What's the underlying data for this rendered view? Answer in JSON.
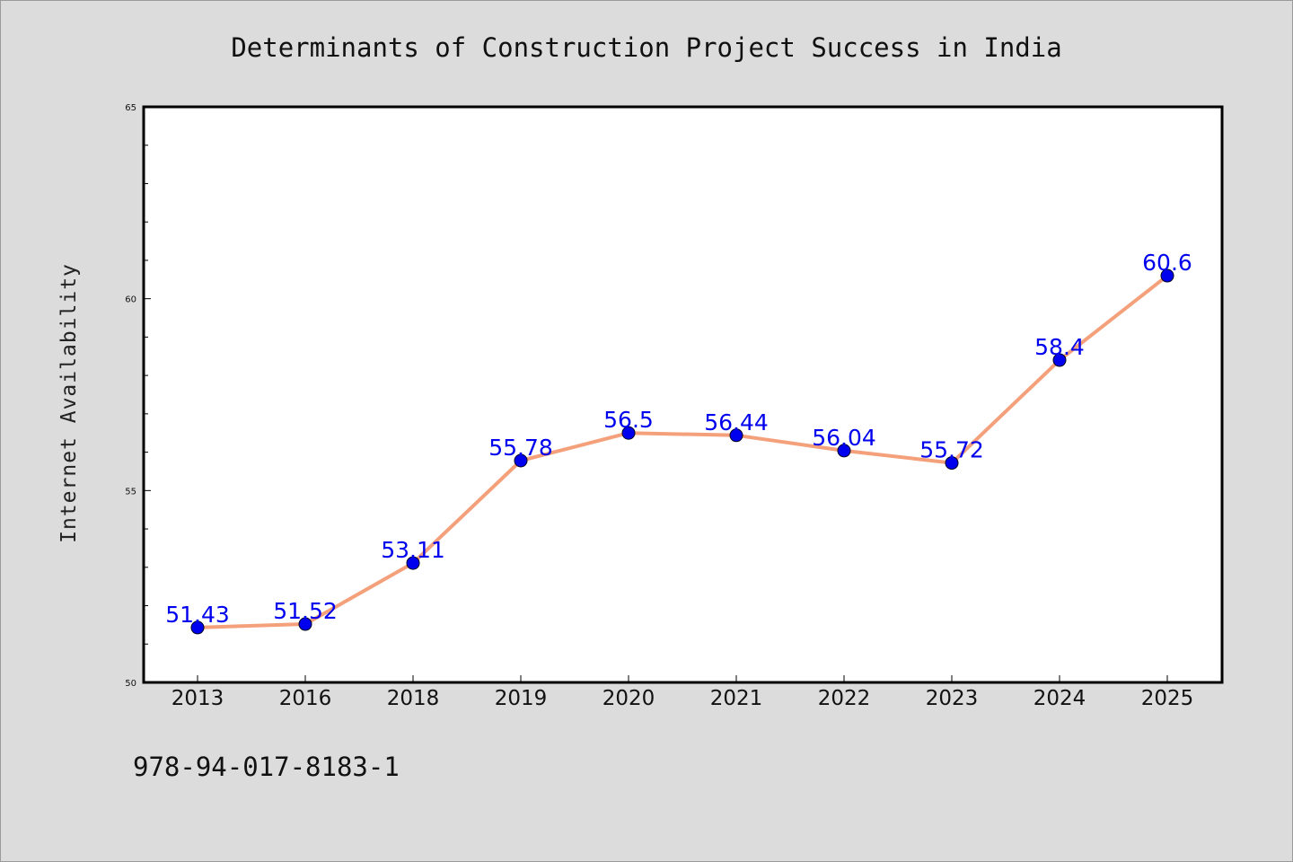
{
  "chart_data": {
    "type": "line",
    "title": "Determinants of Construction Project Success in India",
    "xlabel": "",
    "ylabel": "Internet Availability",
    "categories": [
      "2013",
      "2016",
      "2018",
      "2019",
      "2020",
      "2021",
      "2022",
      "2023",
      "2024",
      "2025"
    ],
    "values": [
      51.43,
      51.52,
      53.11,
      55.78,
      56.5,
      56.44,
      56.04,
      55.72,
      58.4,
      60.6
    ],
    "data_labels": [
      "51.43",
      "51.52",
      "53.11",
      "55.78",
      "56.5",
      "56.44",
      "56.04",
      "55.72",
      "58.4",
      "60.6"
    ],
    "ylim": [
      50,
      65
    ],
    "yticks": [
      "50",
      "55",
      "60",
      "65"
    ],
    "line_color": "#f4a07a",
    "marker_color": "#0000ee",
    "label_color": "#0000ee",
    "grid": false,
    "legend": "none"
  },
  "footnote": "978-94-017-8183-1"
}
